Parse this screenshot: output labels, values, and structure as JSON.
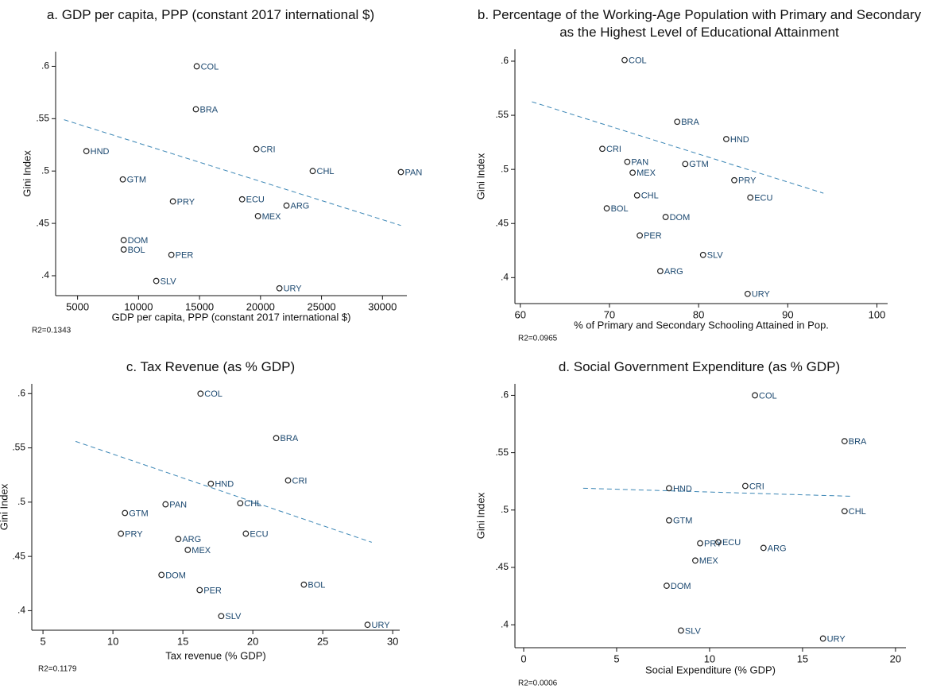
{
  "chart_data": [
    {
      "type": "scatter",
      "title": "a. GDP per capita, PPP (constant 2017 international $)",
      "xlabel": "GDP per capita, PPP (constant 2017 international $)",
      "ylabel": "Gini Index",
      "note": "R2=0.1343",
      "labels": [
        "COL",
        "BRA",
        "CRI",
        "HND",
        "CHL",
        "PAN",
        "GTM",
        "PRY",
        "ECU",
        "ARG",
        "MEX",
        "DOM",
        "BOL",
        "PER",
        "SLV",
        "URY"
      ],
      "x": [
        14770,
        14700,
        19660,
        5720,
        24280,
        31510,
        8710,
        12820,
        18490,
        22130,
        19790,
        8780,
        8780,
        12690,
        11450,
        21550
      ],
      "y": [
        0.6,
        0.559,
        0.521,
        0.519,
        0.5,
        0.499,
        0.492,
        0.471,
        0.473,
        0.467,
        0.457,
        0.434,
        0.425,
        0.42,
        0.395,
        0.388
      ],
      "trendline": {
        "x": [
          3890,
          31510
        ],
        "y": [
          0.549,
          0.448
        ]
      },
      "xlim": [
        3200,
        32000
      ],
      "ylim": [
        0.381,
        0.614
      ],
      "xticks": [
        5000,
        10000,
        15000,
        20000,
        25000,
        30000
      ],
      "yticks": [
        {
          "value": 0.4,
          "label": ".4"
        },
        {
          "value": 0.45,
          "label": ".45"
        },
        {
          "value": 0.5,
          "label": ".5"
        },
        {
          "value": 0.55,
          "label": ".55"
        },
        {
          "value": 0.6,
          "label": ".6"
        }
      ],
      "color": "#1a476f",
      "trend_color": "#3b86b5"
    },
    {
      "type": "scatter",
      "title": "b. Percentage of the Working-Age Population with Primary and Secondary as the Highest Level of Educational Attainment",
      "xlabel": "%  of Primary and Secondary Schooling Attained in Pop.",
      "ylabel": "Gini Index",
      "note": "R2=0.0965",
      "labels": [
        "COL",
        "BRA",
        "HND",
        "CRI",
        "PAN",
        "GTM",
        "MEX",
        "PRY",
        "CHL",
        "ECU",
        "BOL",
        "DOM",
        "PER",
        "SLV",
        "ARG",
        "URY"
      ],
      "x": [
        71.7,
        77.6,
        83.1,
        69.2,
        72.0,
        78.5,
        72.6,
        84.0,
        73.1,
        85.8,
        69.7,
        76.3,
        73.4,
        80.5,
        75.7,
        85.5
      ],
      "y": [
        0.601,
        0.544,
        0.528,
        0.519,
        0.507,
        0.505,
        0.497,
        0.49,
        0.476,
        0.474,
        0.464,
        0.456,
        0.439,
        0.421,
        0.406,
        0.385
      ],
      "trendline": {
        "x": [
          61.3,
          94.0
        ],
        "y": [
          0.5625,
          0.478
        ]
      },
      "xlim": [
        59.4,
        101.2
      ],
      "ylim": [
        0.376,
        0.611
      ],
      "xticks": [
        60,
        70,
        80,
        90,
        100
      ],
      "yticks": [
        {
          "value": 0.4,
          "label": ".4"
        },
        {
          "value": 0.45,
          "label": ".45"
        },
        {
          "value": 0.5,
          "label": ".5"
        },
        {
          "value": 0.55,
          "label": ".55"
        },
        {
          "value": 0.6,
          "label": ".6"
        }
      ],
      "color": "#1a476f",
      "trend_color": "#3b86b5"
    },
    {
      "type": "scatter",
      "title": "c. Tax Revenue (as % GDP)",
      "xlabel": "Tax revenue (% GDP)",
      "ylabel": "Gini Index",
      "note": "R2=0.1179",
      "labels": [
        "COL",
        "BRA",
        "CRI",
        "HND",
        "CHL",
        "PAN",
        "GTM",
        "ECU",
        "PRY",
        "ARG",
        "MEX",
        "DOM",
        "BOL",
        "PER",
        "SLV",
        "URY"
      ],
      "x": [
        16.26,
        21.67,
        22.52,
        17.0,
        19.1,
        13.76,
        10.86,
        19.5,
        10.57,
        14.67,
        15.35,
        13.47,
        23.65,
        16.2,
        17.74,
        28.2
      ],
      "y": [
        0.6,
        0.559,
        0.52,
        0.517,
        0.499,
        0.498,
        0.49,
        0.471,
        0.471,
        0.466,
        0.456,
        0.433,
        0.424,
        0.419,
        0.395,
        0.387
      ],
      "trendline": {
        "x": [
          7.33,
          28.5
        ],
        "y": [
          0.556,
          0.463
        ]
      },
      "xlim": [
        4.2,
        30.5
      ],
      "ylim": [
        0.382,
        0.609
      ],
      "xticks": [
        5,
        10,
        15,
        20,
        25,
        30
      ],
      "yticks": [
        {
          "value": 0.4,
          "label": ".4"
        },
        {
          "value": 0.45,
          "label": ".45"
        },
        {
          "value": 0.5,
          "label": ".5"
        },
        {
          "value": 0.55,
          "label": ".55"
        },
        {
          "value": 0.6,
          "label": ".6"
        }
      ],
      "color": "#1a476f",
      "trend_color": "#3b86b5"
    },
    {
      "type": "scatter",
      "title": "d.  Social Government Expenditure (as % GDP)",
      "xlabel": "Social Expenditure (% GDP)",
      "ylabel": "Gini Index",
      "note": "R2=0.0006",
      "labels": [
        "COL",
        "BRA",
        "HND",
        "CRI",
        "CHL",
        "GTM",
        "PRY",
        "ECU",
        "ARG",
        "MEX",
        "DOM",
        "SLV",
        "URY"
      ],
      "x": [
        12.44,
        17.26,
        7.82,
        11.92,
        17.26,
        7.82,
        9.49,
        10.47,
        12.9,
        9.23,
        7.69,
        8.46,
        16.1
      ],
      "y": [
        0.6,
        0.56,
        0.519,
        0.521,
        0.499,
        0.491,
        0.471,
        0.472,
        0.467,
        0.456,
        0.434,
        0.395,
        0.388
      ],
      "trendline": {
        "x": [
          3.2,
          17.65
        ],
        "y": [
          0.519,
          0.512
        ]
      },
      "xlim": [
        -0.47,
        20.56
      ],
      "ylim": [
        0.38,
        0.61
      ],
      "xticks": [
        0,
        5,
        10,
        15,
        20
      ],
      "yticks": [
        {
          "value": 0.4,
          "label": ".4"
        },
        {
          "value": 0.45,
          "label": ".45"
        },
        {
          "value": 0.5,
          "label": ".5"
        },
        {
          "value": 0.55,
          "label": ".55"
        },
        {
          "value": 0.6,
          "label": ".6"
        }
      ],
      "color": "#1a476f",
      "trend_color": "#3b86b5"
    }
  ]
}
